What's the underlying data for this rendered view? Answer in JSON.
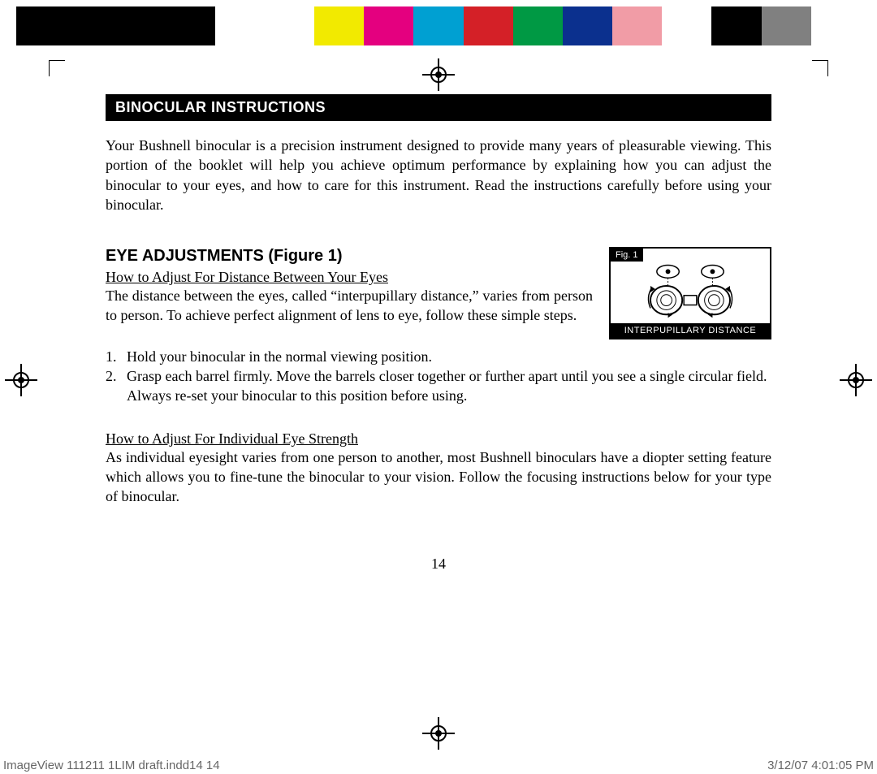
{
  "colorbar": [
    "#000000",
    "#000000",
    "#000000",
    "#000000",
    "#ffffff",
    "#ffffff",
    "#f2ea00",
    "#e4007f",
    "#00a0d2",
    "#d42027",
    "#009944",
    "#0b308e",
    "#f19ca6",
    "#ffffff",
    "#000000",
    "#808080",
    "#ffffff"
  ],
  "section_header": "BINOCULAR INSTRUCTIONS",
  "intro": "Your Bushnell binocular is a precision instrument designed to provide many years of pleasurable viewing. This portion of the booklet will help you achieve optimum performance by explaining how you can adjust the binocular to your eyes, and how to care for this instrument. Read the instructions carefully before using your binocular.",
  "eye_title": "EYE ADJUSTMENTS (Figure 1)",
  "sub1_title": "How to Adjust For Distance Between Your Eyes",
  "sub1_body": "The distance between the eyes, called “interpupillary distance,” varies from person to person. To achieve perfect alignment of lens to eye, follow these simple steps.",
  "steps": [
    {
      "n": "1.",
      "t": "Hold your binocular in the normal viewing position."
    },
    {
      "n": "2.",
      "t": "Grasp each barrel firmly. Move the barrels closer together or further apart until you see a single circular field. Always re-set your binocular to this position before using."
    }
  ],
  "sub2_title": "How to Adjust For Individual Eye Strength",
  "sub2_body": "As individual eyesight varies from one person to another, most Bushnell binoculars have a diopter setting feature which allows you to fine-tune the binocular to your vision. Follow the focusing instructions below for your type of binocular.",
  "figure": {
    "label": "Fig. 1",
    "caption": "INTERPUPILLARY DISTANCE"
  },
  "page_number": "14",
  "footer_left": "ImageView 111211 1LIM draft.indd14   14",
  "footer_right": "3/12/07   4:01:05 PM"
}
